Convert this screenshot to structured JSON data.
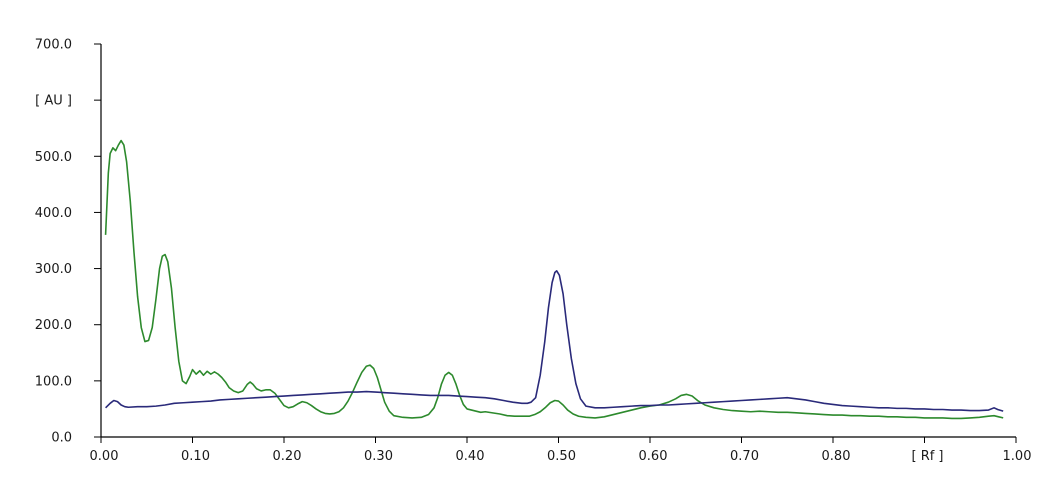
{
  "chart_data": {
    "type": "line",
    "title": "",
    "xlabel": "[ Rf ]",
    "ylabel": "[ AU ]",
    "xlim": [
      0.0,
      1.0
    ],
    "ylim": [
      0.0,
      700.0
    ],
    "grid": false,
    "x_ticks": [
      {
        "value": 0.0,
        "label": "0.00"
      },
      {
        "value": 0.1,
        "label": "0.10"
      },
      {
        "value": 0.2,
        "label": "0.20"
      },
      {
        "value": 0.3,
        "label": "0.30"
      },
      {
        "value": 0.4,
        "label": "0.40"
      },
      {
        "value": 0.5,
        "label": "0.50"
      },
      {
        "value": 0.6,
        "label": "0.60"
      },
      {
        "value": 0.7,
        "label": "0.70"
      },
      {
        "value": 0.8,
        "label": "0.80"
      },
      {
        "value": 0.9,
        "label": "[ Rf ]"
      },
      {
        "value": 1.0,
        "label": "1.00"
      }
    ],
    "y_ticks": [
      {
        "value": 0,
        "label": "0.0"
      },
      {
        "value": 100,
        "label": "100.0"
      },
      {
        "value": 200,
        "label": "200.0"
      },
      {
        "value": 300,
        "label": "300.0"
      },
      {
        "value": 400,
        "label": "400.0"
      },
      {
        "value": 500,
        "label": "500.0"
      },
      {
        "value": 600,
        "label": "[ AU ]"
      },
      {
        "value": 700,
        "label": "700.0"
      }
    ],
    "series": [
      {
        "color": "#2d8a2d",
        "points": [
          [
            0.005,
            360
          ],
          [
            0.008,
            470
          ],
          [
            0.01,
            505
          ],
          [
            0.013,
            515
          ],
          [
            0.016,
            510
          ],
          [
            0.019,
            520
          ],
          [
            0.022,
            528
          ],
          [
            0.025,
            520
          ],
          [
            0.028,
            490
          ],
          [
            0.032,
            420
          ],
          [
            0.036,
            330
          ],
          [
            0.04,
            250
          ],
          [
            0.044,
            195
          ],
          [
            0.048,
            170
          ],
          [
            0.052,
            172
          ],
          [
            0.056,
            195
          ],
          [
            0.06,
            245
          ],
          [
            0.064,
            300
          ],
          [
            0.067,
            322
          ],
          [
            0.07,
            325
          ],
          [
            0.073,
            312
          ],
          [
            0.077,
            265
          ],
          [
            0.081,
            195
          ],
          [
            0.085,
            135
          ],
          [
            0.089,
            100
          ],
          [
            0.093,
            95
          ],
          [
            0.097,
            108
          ],
          [
            0.1,
            120
          ],
          [
            0.104,
            112
          ],
          [
            0.108,
            118
          ],
          [
            0.112,
            110
          ],
          [
            0.116,
            117
          ],
          [
            0.12,
            112
          ],
          [
            0.124,
            116
          ],
          [
            0.128,
            112
          ],
          [
            0.132,
            106
          ],
          [
            0.136,
            98
          ],
          [
            0.14,
            88
          ],
          [
            0.145,
            82
          ],
          [
            0.15,
            79
          ],
          [
            0.155,
            82
          ],
          [
            0.16,
            94
          ],
          [
            0.163,
            98
          ],
          [
            0.166,
            94
          ],
          [
            0.17,
            86
          ],
          [
            0.175,
            82
          ],
          [
            0.18,
            84
          ],
          [
            0.185,
            84
          ],
          [
            0.19,
            78
          ],
          [
            0.195,
            67
          ],
          [
            0.2,
            56
          ],
          [
            0.205,
            52
          ],
          [
            0.21,
            54
          ],
          [
            0.215,
            59
          ],
          [
            0.22,
            63
          ],
          [
            0.225,
            61
          ],
          [
            0.23,
            56
          ],
          [
            0.235,
            50
          ],
          [
            0.24,
            45
          ],
          [
            0.245,
            42
          ],
          [
            0.25,
            41
          ],
          [
            0.255,
            42
          ],
          [
            0.26,
            45
          ],
          [
            0.265,
            52
          ],
          [
            0.27,
            64
          ],
          [
            0.275,
            80
          ],
          [
            0.28,
            98
          ],
          [
            0.285,
            115
          ],
          [
            0.29,
            126
          ],
          [
            0.294,
            128
          ],
          [
            0.298,
            122
          ],
          [
            0.302,
            106
          ],
          [
            0.306,
            84
          ],
          [
            0.31,
            62
          ],
          [
            0.315,
            46
          ],
          [
            0.32,
            38
          ],
          [
            0.33,
            35
          ],
          [
            0.34,
            34
          ],
          [
            0.35,
            35
          ],
          [
            0.358,
            40
          ],
          [
            0.364,
            52
          ],
          [
            0.368,
            70
          ],
          [
            0.372,
            94
          ],
          [
            0.376,
            110
          ],
          [
            0.38,
            115
          ],
          [
            0.384,
            110
          ],
          [
            0.388,
            94
          ],
          [
            0.392,
            74
          ],
          [
            0.396,
            58
          ],
          [
            0.4,
            50
          ],
          [
            0.405,
            48
          ],
          [
            0.41,
            46
          ],
          [
            0.415,
            44
          ],
          [
            0.42,
            45
          ],
          [
            0.428,
            43
          ],
          [
            0.436,
            41
          ],
          [
            0.444,
            38
          ],
          [
            0.452,
            37
          ],
          [
            0.46,
            37
          ],
          [
            0.468,
            37
          ],
          [
            0.474,
            40
          ],
          [
            0.48,
            45
          ],
          [
            0.486,
            53
          ],
          [
            0.491,
            61
          ],
          [
            0.496,
            65
          ],
          [
            0.5,
            64
          ],
          [
            0.505,
            57
          ],
          [
            0.51,
            48
          ],
          [
            0.516,
            41
          ],
          [
            0.522,
            37
          ],
          [
            0.53,
            35
          ],
          [
            0.54,
            34
          ],
          [
            0.55,
            36
          ],
          [
            0.56,
            40
          ],
          [
            0.57,
            44
          ],
          [
            0.58,
            48
          ],
          [
            0.59,
            52
          ],
          [
            0.6,
            55
          ],
          [
            0.61,
            57
          ],
          [
            0.62,
            62
          ],
          [
            0.628,
            68
          ],
          [
            0.634,
            74
          ],
          [
            0.64,
            76
          ],
          [
            0.646,
            73
          ],
          [
            0.652,
            65
          ],
          [
            0.66,
            57
          ],
          [
            0.67,
            52
          ],
          [
            0.68,
            49
          ],
          [
            0.69,
            47
          ],
          [
            0.7,
            46
          ],
          [
            0.71,
            45
          ],
          [
            0.72,
            46
          ],
          [
            0.73,
            45
          ],
          [
            0.74,
            44
          ],
          [
            0.75,
            44
          ],
          [
            0.76,
            43
          ],
          [
            0.77,
            42
          ],
          [
            0.78,
            41
          ],
          [
            0.79,
            40
          ],
          [
            0.8,
            39
          ],
          [
            0.81,
            39
          ],
          [
            0.82,
            38
          ],
          [
            0.83,
            38
          ],
          [
            0.84,
            37
          ],
          [
            0.85,
            37
          ],
          [
            0.86,
            36
          ],
          [
            0.87,
            36
          ],
          [
            0.88,
            35
          ],
          [
            0.89,
            35
          ],
          [
            0.9,
            34
          ],
          [
            0.91,
            34
          ],
          [
            0.92,
            34
          ],
          [
            0.93,
            33
          ],
          [
            0.94,
            33
          ],
          [
            0.95,
            34
          ],
          [
            0.96,
            35
          ],
          [
            0.97,
            37
          ],
          [
            0.976,
            38
          ],
          [
            0.981,
            36
          ],
          [
            0.986,
            34
          ]
        ]
      },
      {
        "color": "#2a2a7a",
        "points": [
          [
            0.005,
            52
          ],
          [
            0.01,
            60
          ],
          [
            0.014,
            65
          ],
          [
            0.018,
            63
          ],
          [
            0.022,
            57
          ],
          [
            0.026,
            54
          ],
          [
            0.03,
            53
          ],
          [
            0.04,
            54
          ],
          [
            0.05,
            54
          ],
          [
            0.06,
            55
          ],
          [
            0.07,
            57
          ],
          [
            0.08,
            60
          ],
          [
            0.09,
            61
          ],
          [
            0.1,
            62
          ],
          [
            0.11,
            63
          ],
          [
            0.12,
            64
          ],
          [
            0.13,
            66
          ],
          [
            0.14,
            67
          ],
          [
            0.15,
            68
          ],
          [
            0.16,
            69
          ],
          [
            0.17,
            70
          ],
          [
            0.18,
            71
          ],
          [
            0.19,
            72
          ],
          [
            0.2,
            73
          ],
          [
            0.21,
            74
          ],
          [
            0.22,
            75
          ],
          [
            0.23,
            76
          ],
          [
            0.24,
            77
          ],
          [
            0.25,
            78
          ],
          [
            0.26,
            79
          ],
          [
            0.27,
            80
          ],
          [
            0.28,
            80
          ],
          [
            0.29,
            81
          ],
          [
            0.3,
            80
          ],
          [
            0.31,
            79
          ],
          [
            0.32,
            78
          ],
          [
            0.33,
            77
          ],
          [
            0.34,
            76
          ],
          [
            0.35,
            75
          ],
          [
            0.36,
            74
          ],
          [
            0.37,
            74
          ],
          [
            0.38,
            74
          ],
          [
            0.39,
            73
          ],
          [
            0.4,
            72
          ],
          [
            0.41,
            71
          ],
          [
            0.42,
            70
          ],
          [
            0.43,
            68
          ],
          [
            0.44,
            65
          ],
          [
            0.45,
            62
          ],
          [
            0.46,
            60
          ],
          [
            0.466,
            60
          ],
          [
            0.47,
            62
          ],
          [
            0.475,
            70
          ],
          [
            0.48,
            110
          ],
          [
            0.485,
            170
          ],
          [
            0.489,
            230
          ],
          [
            0.493,
            275
          ],
          [
            0.496,
            293
          ],
          [
            0.498,
            296
          ],
          [
            0.501,
            288
          ],
          [
            0.505,
            255
          ],
          [
            0.509,
            200
          ],
          [
            0.514,
            140
          ],
          [
            0.519,
            95
          ],
          [
            0.524,
            68
          ],
          [
            0.53,
            55
          ],
          [
            0.54,
            52
          ],
          [
            0.55,
            52
          ],
          [
            0.56,
            53
          ],
          [
            0.57,
            54
          ],
          [
            0.58,
            55
          ],
          [
            0.59,
            56
          ],
          [
            0.6,
            56
          ],
          [
            0.61,
            57
          ],
          [
            0.62,
            57
          ],
          [
            0.63,
            58
          ],
          [
            0.64,
            59
          ],
          [
            0.65,
            60
          ],
          [
            0.66,
            61
          ],
          [
            0.67,
            62
          ],
          [
            0.68,
            63
          ],
          [
            0.69,
            64
          ],
          [
            0.7,
            65
          ],
          [
            0.71,
            66
          ],
          [
            0.72,
            67
          ],
          [
            0.73,
            68
          ],
          [
            0.74,
            69
          ],
          [
            0.75,
            70
          ],
          [
            0.76,
            68
          ],
          [
            0.77,
            66
          ],
          [
            0.78,
            63
          ],
          [
            0.79,
            60
          ],
          [
            0.8,
            58
          ],
          [
            0.81,
            56
          ],
          [
            0.82,
            55
          ],
          [
            0.83,
            54
          ],
          [
            0.84,
            53
          ],
          [
            0.85,
            52
          ],
          [
            0.86,
            52
          ],
          [
            0.87,
            51
          ],
          [
            0.88,
            51
          ],
          [
            0.89,
            50
          ],
          [
            0.9,
            50
          ],
          [
            0.91,
            49
          ],
          [
            0.92,
            49
          ],
          [
            0.93,
            48
          ],
          [
            0.94,
            48
          ],
          [
            0.95,
            47
          ],
          [
            0.96,
            47
          ],
          [
            0.97,
            48
          ],
          [
            0.976,
            52
          ],
          [
            0.98,
            49
          ],
          [
            0.986,
            46
          ]
        ]
      }
    ]
  }
}
